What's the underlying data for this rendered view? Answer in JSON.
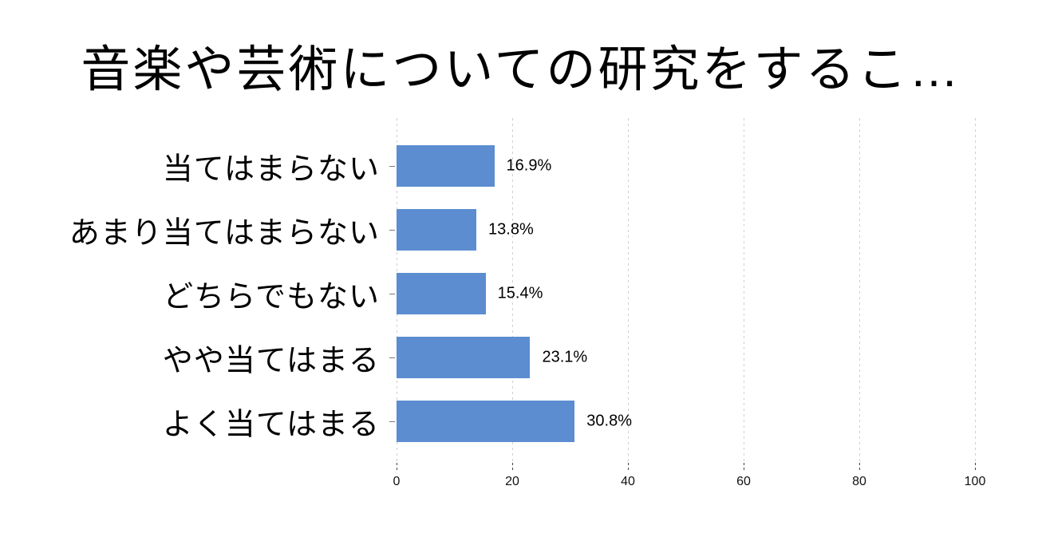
{
  "title": "音楽や芸術についての研究をするこ…",
  "colors": {
    "bar": "#5b8dd0",
    "gridline": "#cfcfcf",
    "text": "#000000",
    "background": "#ffffff"
  },
  "chart_data": {
    "type": "bar",
    "orientation": "horizontal",
    "title": "音楽や芸術についての研究をするこ…",
    "categories": [
      "当てはまらない",
      "あまり当てはまらない",
      "どちらでもない",
      "やや当てはまる",
      "よく当てはまる"
    ],
    "values": [
      16.9,
      13.8,
      15.4,
      23.1,
      30.8
    ],
    "value_labels": [
      "16.9%",
      "13.8%",
      "15.4%",
      "23.1%",
      "30.8%"
    ],
    "xlabel": "",
    "ylabel": "",
    "xlim": [
      0,
      100
    ],
    "xticks": [
      "0",
      "20",
      "40",
      "60",
      "80",
      "100"
    ],
    "grid": "vertical dashed gridlines at each x tick",
    "legend": "none"
  }
}
